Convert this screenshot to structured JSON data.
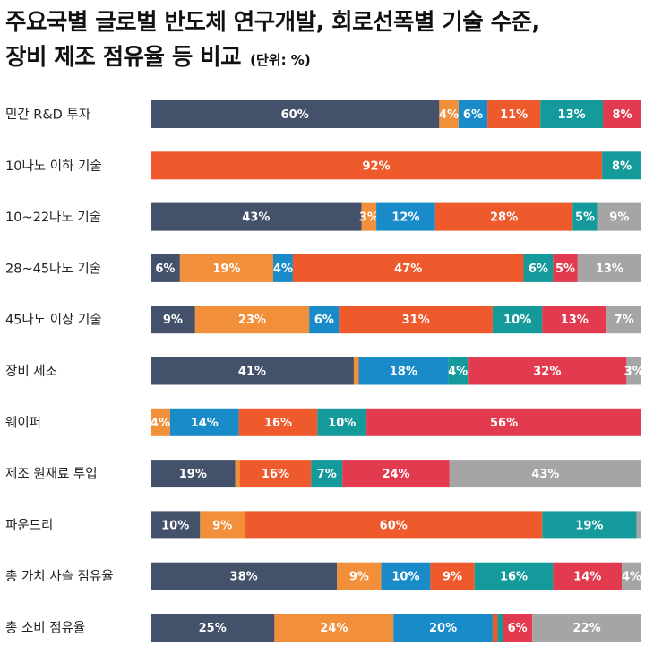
{
  "title": {
    "line1": "주요국별 글로벌 반도체 연구개발, 회로선폭별 기술 수준,",
    "line2": "장비 제조 점유율 등 비교",
    "unit": "(단위: %)"
  },
  "chart_data": {
    "type": "bar",
    "stacked": true,
    "orientation": "horizontal",
    "categories": [
      "민간 R&D 투자",
      "10나노 이하 기술",
      "10~22나노 기술",
      "28~45나노 기술",
      "45나노 이상 기술",
      "장비 제조",
      "웨이퍼",
      "제조 원재료 투입",
      "파운드리",
      "총 가치 사슬 점유율",
      "총 소비 점유율"
    ],
    "colors": [
      "#44516b",
      "#f28f3b",
      "#1a8bc9",
      "#ee5a2c",
      "#149a9a",
      "#e23a4e",
      "#a5a5a5"
    ],
    "values": [
      [
        60,
        4,
        6,
        11,
        13,
        8
      ],
      [
        92,
        8
      ],
      [
        43,
        3,
        12,
        28,
        5,
        9
      ],
      [
        6,
        19,
        4,
        47,
        6,
        5,
        13
      ],
      [
        9,
        23,
        6,
        31,
        10,
        13,
        7
      ],
      [
        41,
        1,
        18,
        4,
        32,
        3
      ],
      [
        4,
        14,
        16,
        10,
        56
      ],
      [
        19,
        1,
        16,
        7,
        24,
        43
      ],
      [
        10,
        9,
        60,
        19,
        1
      ],
      [
        38,
        9,
        10,
        9,
        16,
        14,
        4
      ],
      [
        25,
        24,
        20,
        1,
        1,
        6,
        22
      ]
    ],
    "segment_colors": [
      [
        0,
        1,
        2,
        3,
        4,
        5
      ],
      [
        3,
        4
      ],
      [
        0,
        1,
        2,
        3,
        4,
        6
      ],
      [
        0,
        1,
        2,
        3,
        4,
        5,
        6
      ],
      [
        0,
        1,
        2,
        3,
        4,
        5,
        6
      ],
      [
        0,
        1,
        2,
        4,
        5,
        6
      ],
      [
        1,
        2,
        3,
        4,
        5
      ],
      [
        0,
        1,
        3,
        4,
        5,
        6
      ],
      [
        0,
        1,
        3,
        4,
        6
      ],
      [
        0,
        1,
        2,
        3,
        4,
        5,
        6
      ],
      [
        0,
        1,
        2,
        3,
        4,
        5,
        6
      ]
    ],
    "labels": [
      [
        "60%",
        "4%",
        "6%",
        "11%",
        "13%",
        "8%"
      ],
      [
        "92%",
        "8%"
      ],
      [
        "43%",
        "3%",
        "12%",
        "28%",
        "5%",
        "9%"
      ],
      [
        "6%",
        "19%",
        "4%",
        "47%",
        "6%",
        "5%",
        "13%"
      ],
      [
        "9%",
        "23%",
        "6%",
        "31%",
        "10%",
        "13%",
        "7%"
      ],
      [
        "41%",
        "",
        "18%",
        "4%",
        "32%",
        "3%"
      ],
      [
        "4%",
        "14%",
        "16%",
        "10%",
        "56%"
      ],
      [
        "19%",
        "",
        "16%",
        "7%",
        "24%",
        "43%"
      ],
      [
        "10%",
        "9%",
        "60%",
        "19%",
        ""
      ],
      [
        "38%",
        "9%",
        "10%",
        "9%",
        "16%",
        "14%",
        "4%"
      ],
      [
        "25%",
        "24%",
        "20%",
        "",
        "",
        "6%",
        "22%"
      ]
    ],
    "xlim": [
      0,
      100
    ]
  }
}
